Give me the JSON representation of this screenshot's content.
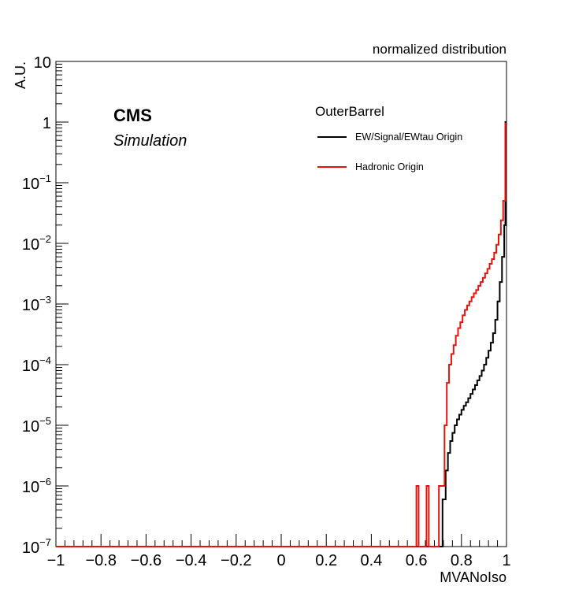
{
  "chart_data": {
    "type": "line",
    "header": "normalized distribution",
    "xlabel": "MVANoIso",
    "ylabel": "A.U.",
    "xlim": [
      -1,
      1
    ],
    "ylim": [
      1e-07,
      10
    ],
    "log_y": true,
    "grid": false,
    "x_ticks": [
      "−1",
      "−0.8",
      "−0.6",
      "−0.4",
      "−0.2",
      "0",
      "0.2",
      "0.4",
      "0.6",
      "0.8",
      "1"
    ],
    "y_ticks": [
      {
        "base": "10",
        "exp": "−7"
      },
      {
        "base": "10",
        "exp": "−6"
      },
      {
        "base": "10",
        "exp": "−5"
      },
      {
        "base": "10",
        "exp": "−4"
      },
      {
        "base": "10",
        "exp": "−3"
      },
      {
        "base": "10",
        "exp": "−2"
      },
      {
        "base": "10",
        "exp": "−1"
      },
      {
        "base": "1",
        "exp": ""
      },
      {
        "base": "10",
        "exp": ""
      }
    ],
    "labels": {
      "cms": "CMS",
      "simulation": "Simulation",
      "region": "OuterBarrel"
    },
    "legend_position": "top-right",
    "series": [
      {
        "name": "EW/Signal/EWtau Origin",
        "color": "#000000",
        "points": [
          [
            -1,
            1e-07
          ],
          [
            0.716,
            1e-07
          ],
          [
            0.716,
            6e-07
          ],
          [
            0.73,
            1.8e-06
          ],
          [
            0.74,
            3.5e-06
          ],
          [
            0.75,
            5.5e-06
          ],
          [
            0.76,
            7.5e-06
          ],
          [
            0.77,
            1e-05
          ],
          [
            0.78,
            1.25e-05
          ],
          [
            0.79,
            1.5e-05
          ],
          [
            0.8,
            1.8e-05
          ],
          [
            0.81,
            2.1e-05
          ],
          [
            0.82,
            2.4e-05
          ],
          [
            0.83,
            2.8e-05
          ],
          [
            0.84,
            3.3e-05
          ],
          [
            0.85,
            3.9e-05
          ],
          [
            0.86,
            4.6e-05
          ],
          [
            0.87,
            5.5e-05
          ],
          [
            0.88,
            6.5e-05
          ],
          [
            0.89,
            8e-05
          ],
          [
            0.9,
            0.0001
          ],
          [
            0.91,
            0.00013
          ],
          [
            0.92,
            0.00017
          ],
          [
            0.93,
            0.00023
          ],
          [
            0.94,
            0.00033
          ],
          [
            0.95,
            0.00055
          ],
          [
            0.96,
            0.0011
          ],
          [
            0.97,
            0.0023
          ],
          [
            0.98,
            0.006
          ],
          [
            0.99,
            0.02
          ],
          [
            0.995,
            1.0
          ],
          [
            1.0,
            1.0
          ]
        ]
      },
      {
        "name": "Hadronic Origin",
        "color": "#e8120c",
        "points": [
          [
            -1,
            1e-07
          ],
          [
            0.6,
            1e-07
          ],
          [
            0.6,
            1e-06
          ],
          [
            0.61,
            1e-06
          ],
          [
            0.61,
            1e-07
          ],
          [
            0.645,
            1e-07
          ],
          [
            0.645,
            1e-06
          ],
          [
            0.655,
            1e-06
          ],
          [
            0.655,
            1e-07
          ],
          [
            0.7,
            1e-07
          ],
          [
            0.7,
            1e-06
          ],
          [
            0.725,
            1e-06
          ],
          [
            0.725,
            1e-05
          ],
          [
            0.735,
            5e-05
          ],
          [
            0.745,
            0.0001
          ],
          [
            0.755,
            0.00015
          ],
          [
            0.765,
            0.00021
          ],
          [
            0.775,
            0.0003
          ],
          [
            0.785,
            0.0004
          ],
          [
            0.795,
            0.0005
          ],
          [
            0.805,
            0.00065
          ],
          [
            0.815,
            0.0008
          ],
          [
            0.825,
            0.00095
          ],
          [
            0.835,
            0.0011
          ],
          [
            0.845,
            0.0013
          ],
          [
            0.855,
            0.0015
          ],
          [
            0.865,
            0.0017
          ],
          [
            0.875,
            0.002
          ],
          [
            0.885,
            0.0023
          ],
          [
            0.895,
            0.0027
          ],
          [
            0.905,
            0.0032
          ],
          [
            0.915,
            0.0038
          ],
          [
            0.925,
            0.0046
          ],
          [
            0.935,
            0.0055
          ],
          [
            0.945,
            0.007
          ],
          [
            0.955,
            0.0095
          ],
          [
            0.965,
            0.014
          ],
          [
            0.975,
            0.024
          ],
          [
            0.985,
            0.05
          ],
          [
            0.995,
            0.95
          ],
          [
            1.0,
            0.95
          ]
        ]
      }
    ]
  }
}
